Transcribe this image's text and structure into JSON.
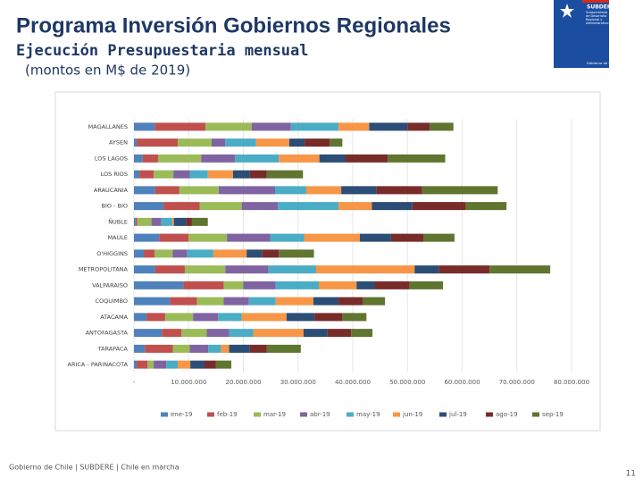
{
  "header": {
    "title": "Programa Inversión Gobiernos Regionales",
    "subtitle": "Ejecución Presupuestaria mensual",
    "note": "(montos en M$ de 2019)"
  },
  "logo": {
    "name": "SUBDERE",
    "text": "Subsecretaría de Desarrollo Regional y Administrativo",
    "footer": "Gobierno de Chile"
  },
  "footer": {
    "text": "Gobierno de Chile | SUBDERE | Chile en marcha",
    "page": "11"
  },
  "chart_data": {
    "type": "stacked-barh",
    "categories": [
      "MAGALLANES",
      "AYSEN",
      "LOS LAGOS",
      "LOS RIOS",
      "ARAUCANIA",
      "BIO - BIO",
      "ÑUBLE",
      "MAULE",
      "O'HIGGINS",
      "METROPOLITANA",
      "VALPARAISO",
      "COQUIMBO",
      "ATACAMA",
      "ANTOFAGASTA",
      "TARAPACA",
      "ARICA - PARINACOTA"
    ],
    "series": [
      {
        "name": "ene-19",
        "color": "#4f81bd",
        "values": [
          3800000,
          500000,
          1600000,
          1000000,
          3900000,
          5400000,
          300000,
          4600000,
          1800000,
          3900000,
          9000000,
          6600000,
          2300000,
          5100000,
          2000000,
          500000
        ]
      },
      {
        "name": "feb-19",
        "color": "#c0504d",
        "values": [
          9300000,
          7500000,
          2800000,
          2600000,
          4400000,
          6600000,
          300000,
          5400000,
          2000000,
          5400000,
          7400000,
          4900000,
          3400000,
          3600000,
          5100000,
          2000000
        ]
      },
      {
        "name": "mar-19",
        "color": "#9bbb59",
        "values": [
          8400000,
          6200000,
          7900000,
          3600000,
          7200000,
          7700000,
          2600000,
          7000000,
          3300000,
          7400000,
          3600000,
          4900000,
          5100000,
          4600000,
          3100000,
          1100000
        ]
      },
      {
        "name": "abr-19",
        "color": "#8064a2",
        "values": [
          7200000,
          2500000,
          6200000,
          3000000,
          10300000,
          6600000,
          1800000,
          7900000,
          2600000,
          7900000,
          5900000,
          4600000,
          4600000,
          4100000,
          3400000,
          2300000
        ]
      },
      {
        "name": "may-19",
        "color": "#4bacc6",
        "values": [
          8700000,
          5600000,
          8000000,
          3300000,
          5700000,
          11100000,
          2000000,
          6200000,
          4800000,
          8700000,
          7900000,
          4900000,
          4300000,
          4400000,
          2300000,
          2100000
        ]
      },
      {
        "name": "jun-19",
        "color": "#f79646",
        "values": [
          5600000,
          6100000,
          7400000,
          4600000,
          6400000,
          6100000,
          300000,
          10200000,
          6100000,
          18000000,
          6900000,
          6900000,
          8200000,
          9200000,
          1500000,
          2300000
        ]
      },
      {
        "name": "jul-19",
        "color": "#2c4d75",
        "values": [
          7000000,
          2800000,
          4800000,
          3100000,
          6400000,
          7400000,
          2200000,
          5700000,
          2800000,
          4400000,
          3300000,
          4600000,
          5100000,
          4400000,
          3800000,
          2600000
        ]
      },
      {
        "name": "ago-19",
        "color": "#772c2a",
        "values": [
          4100000,
          4600000,
          7700000,
          3100000,
          8400000,
          9800000,
          1100000,
          5900000,
          3100000,
          9300000,
          6400000,
          4400000,
          5100000,
          4300000,
          3100000,
          2100000
        ]
      },
      {
        "name": "sep-19",
        "color": "#5f7530",
        "values": [
          4300000,
          2300000,
          10500000,
          6600000,
          13800000,
          7400000,
          2900000,
          5700000,
          6400000,
          11100000,
          6100000,
          4100000,
          4400000,
          3900000,
          6200000,
          2800000
        ]
      }
    ],
    "xlim": [
      0,
      80000000
    ],
    "xticks": [
      {
        "value": 0,
        "label": "-"
      },
      {
        "value": 10000000,
        "label": "10.000.000"
      },
      {
        "value": 20000000,
        "label": "20.000.000"
      },
      {
        "value": 30000000,
        "label": "30.000.000"
      },
      {
        "value": 40000000,
        "label": "40.000.000"
      },
      {
        "value": 50000000,
        "label": "50.000.000"
      },
      {
        "value": 60000000,
        "label": "60.000.000"
      },
      {
        "value": 70000000,
        "label": "70.000.000"
      },
      {
        "value": 80000000,
        "label": "80.000.000"
      }
    ],
    "grid": true
  }
}
